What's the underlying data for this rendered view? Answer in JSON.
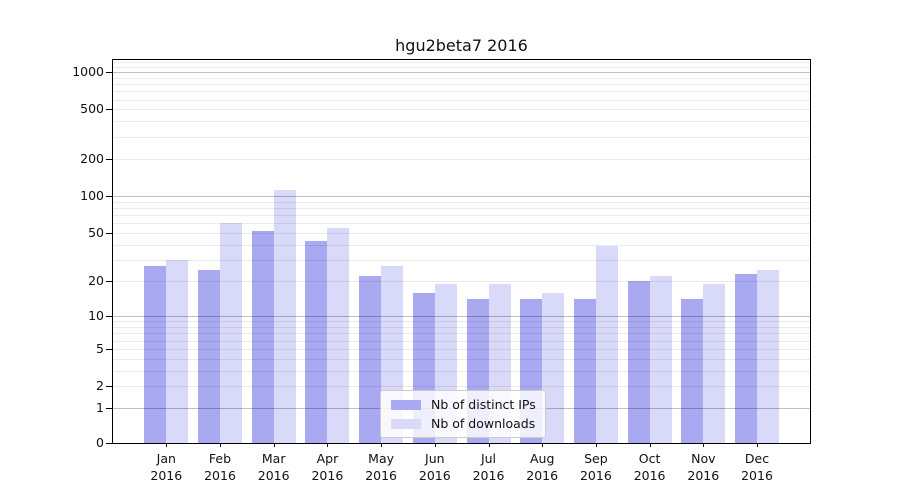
{
  "chart_data": {
    "type": "bar",
    "title": "hgu2beta7 2016",
    "categories": [
      "Jan",
      "Feb",
      "Mar",
      "Apr",
      "May",
      "Jun",
      "Jul",
      "Aug",
      "Sep",
      "Oct",
      "Nov",
      "Dec"
    ],
    "category_year": "2016",
    "series": [
      {
        "key": "distinct-ips",
        "name": "Nb of distinct IPs",
        "color": "#a9a9f2",
        "values": [
          27,
          25,
          52,
          43,
          22,
          16,
          14,
          14,
          14,
          20,
          14,
          23
        ]
      },
      {
        "key": "downloads",
        "name": "Nb of downloads",
        "color": "#d9d9f9",
        "values": [
          30,
          60,
          112,
          55,
          27,
          19,
          19,
          16,
          39,
          22,
          19,
          25
        ]
      }
    ],
    "y_ticks": [
      1000,
      500,
      200,
      100,
      50,
      20,
      10,
      5,
      2,
      1,
      0
    ],
    "y_scale": "log10(value+1)",
    "ylim": [
      0,
      1280
    ],
    "grid": {
      "orientation": "horizontal",
      "major_line_values": [
        1,
        10,
        100,
        1000
      ],
      "minor_lines": true,
      "drawn_over_bars": true
    },
    "legend": {
      "position": "lower-center"
    }
  },
  "colors": {
    "bar_distinct_ips": "#a9a9f2",
    "bar_downloads": "#d9d9f9",
    "grid_major": "rgba(0,0,0,0.25)",
    "grid_minor": "rgba(0,0,0,0.08)",
    "spine": "#000000",
    "text": "#111111",
    "legend_border": "#cccccc"
  }
}
